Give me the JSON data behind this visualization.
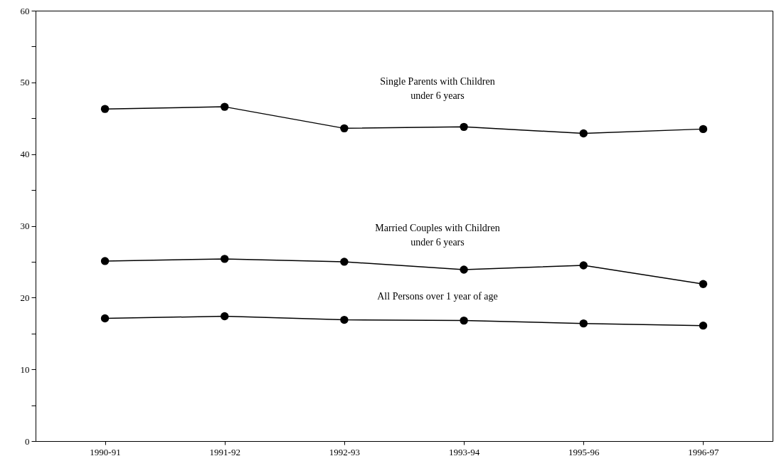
{
  "chart_data": {
    "type": "line",
    "categories": [
      "1990-91",
      "1991-92",
      "1992-93",
      "1993-94",
      "1995-96",
      "1996-97"
    ],
    "series": [
      {
        "name": "Single Parents with Children under 6 years",
        "color": "#000000",
        "values": [
          46.3,
          46.6,
          43.6,
          43.8,
          42.9,
          43.5
        ]
      },
      {
        "name": "Married Couples with Children under 6 years",
        "color": "#000000",
        "values": [
          25.1,
          25.4,
          25.0,
          23.9,
          24.5,
          21.9
        ]
      },
      {
        "name": "All Persons over 1 year of age",
        "color": "#000000",
        "values": [
          17.1,
          17.4,
          16.9,
          16.8,
          16.4,
          16.1
        ]
      }
    ],
    "ylim": [
      0,
      60
    ],
    "yticks": [
      0,
      {
        "value": 5,
        "label": null
      },
      10,
      {
        "value": 15,
        "label": null
      },
      20,
      {
        "value": 25,
        "label": null
      },
      30,
      {
        "value": 35,
        "label": null
      },
      40,
      {
        "value": 45,
        "label": null
      },
      50,
      {
        "value": 55,
        "label": null
      },
      60
    ],
    "grid": false,
    "marker": "circle",
    "line_style": "solid"
  }
}
